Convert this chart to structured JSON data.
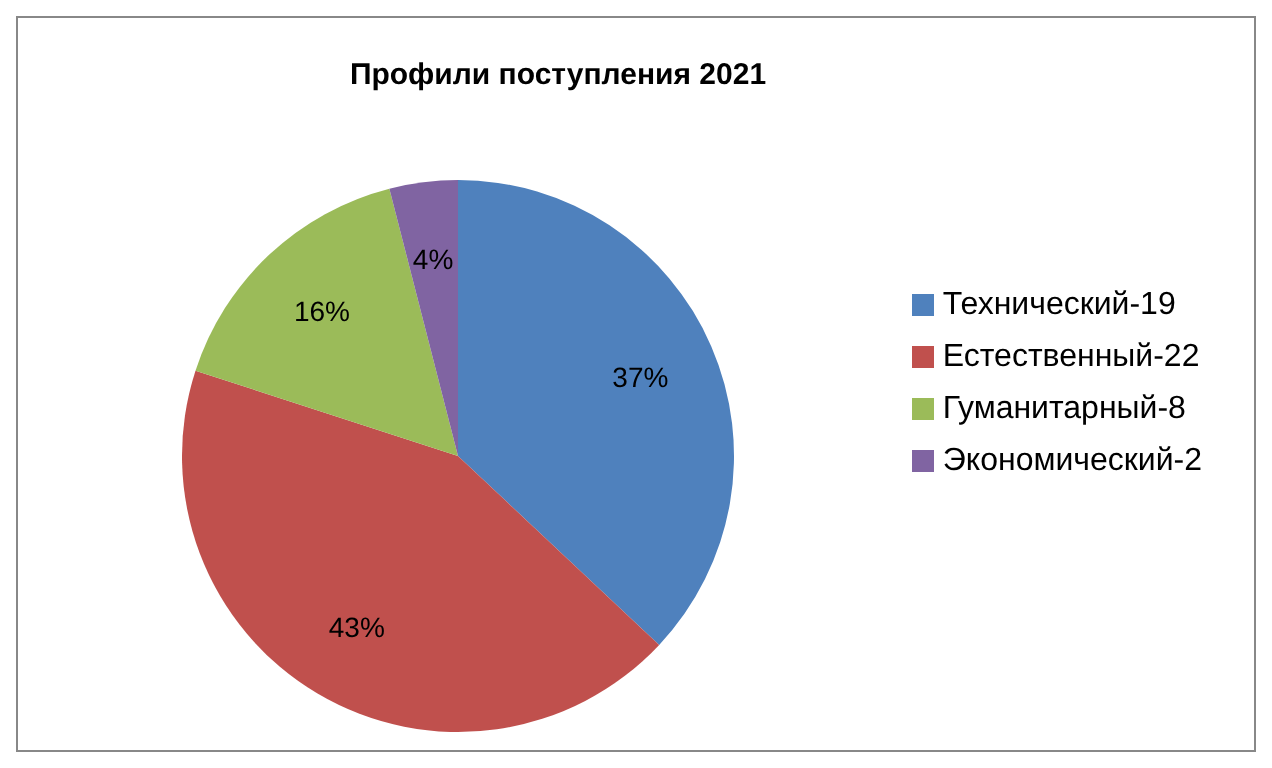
{
  "chart_data": {
    "type": "pie",
    "title": "Профили поступления 2021",
    "categories": [
      "Технический-19",
      "Естественный-22",
      "Гуманитарный-8",
      "Экономический-2"
    ],
    "values": [
      37,
      43,
      16,
      4
    ],
    "colors": [
      "#4f81bd",
      "#c0504d",
      "#9bbb59",
      "#8064a2"
    ],
    "value_labels": [
      "37%",
      "43%",
      "16%",
      "4%"
    ],
    "legend": "right"
  }
}
